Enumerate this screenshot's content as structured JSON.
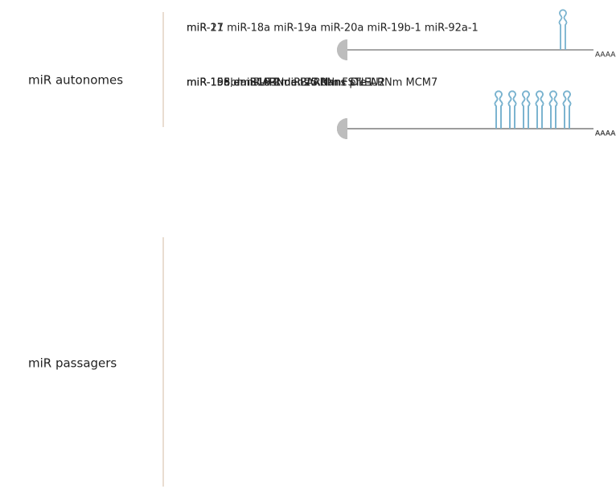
{
  "groups": [
    {
      "label": "miR autonomes",
      "items": [
        {
          "label": "miR-21",
          "tail": "AAAA"
        },
        {
          "label": "miR-17 miR-18a miR-19a miR-20a miR-19b-1 miR-92a-1",
          "tail": "AAAA"
        }
      ]
    },
    {
      "label": "miR passagers",
      "items": [
        {
          "label": "miR-15a, miR16-1 dans ARNnc DLEU2",
          "tail": "AAAA"
        },
        {
          "label": "miR-106b miR-93 miR-25  dans pre-ARNm MCM7",
          "tail": "AAAA"
        },
        {
          "label": "miR-155 dans ARNnc BIC",
          "tail": "AAAA"
        },
        {
          "label": "miR-198 en 3'UTR de l'ARNm FSTL1",
          "tail": "AAAA"
        }
      ]
    }
  ]
}
